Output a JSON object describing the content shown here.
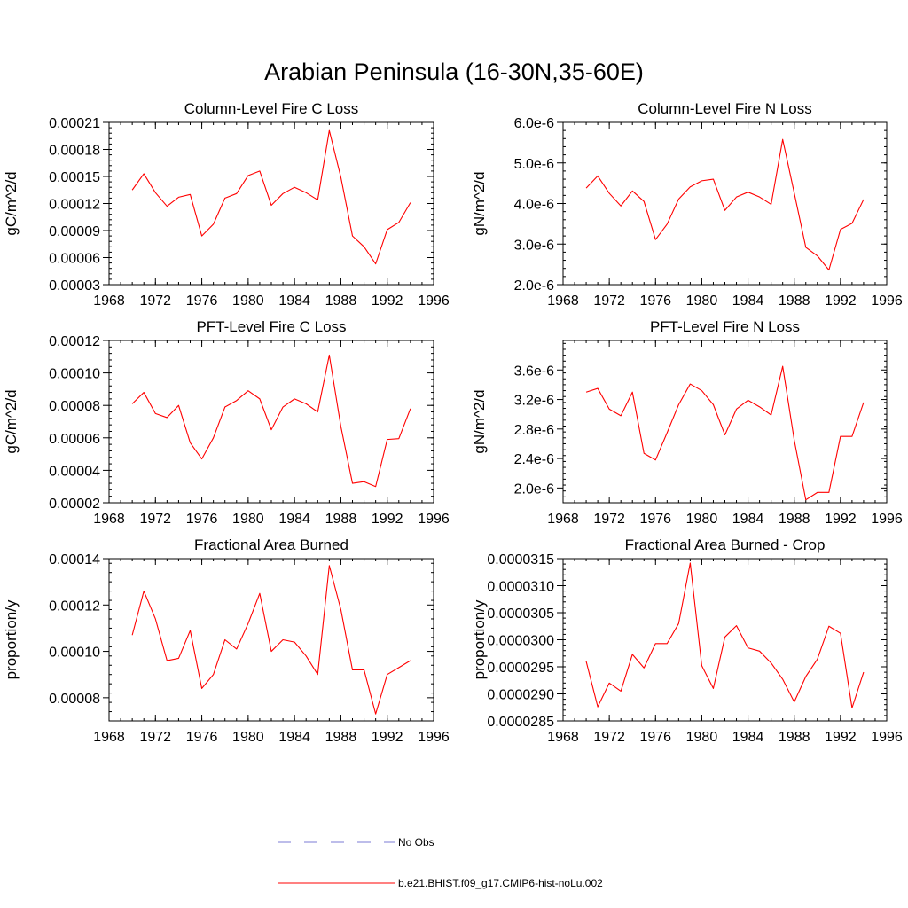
{
  "figure": {
    "title": "Arabian Peninsula (16-30N,35-60E)"
  },
  "chart_data": [
    {
      "type": "line",
      "title": "Column-Level Fire C Loss",
      "xlabel": "",
      "ylabel": "gC/m^2/d",
      "xlim": [
        1968,
        1996
      ],
      "ylim": [
        3e-05,
        0.00021
      ],
      "xticks": [
        1968,
        1972,
        1976,
        1980,
        1984,
        1988,
        1992,
        1996
      ],
      "yticks": [
        3e-05,
        6e-05,
        9e-05,
        0.00012,
        0.00015,
        0.00018,
        0.00021
      ],
      "ytick_labels": [
        "0.00003",
        "0.00006",
        "0.00009",
        "0.00012",
        "0.00015",
        "0.00018",
        "0.00021"
      ],
      "x": [
        1970,
        1971,
        1972,
        1973,
        1974,
        1975,
        1976,
        1977,
        1978,
        1979,
        1980,
        1981,
        1982,
        1983,
        1984,
        1985,
        1986,
        1987,
        1988,
        1989,
        1990,
        1991,
        1992,
        1993,
        1994
      ],
      "series": [
        {
          "color": "#ff0000",
          "values": [
            0.000135,
            0.000153,
            0.000132,
            0.000117,
            0.000127,
            0.00013,
            8.4e-05,
            9.7e-05,
            0.000126,
            0.000131,
            0.000151,
            0.000156,
            0.000118,
            0.000131,
            0.000138,
            0.000132,
            0.000124,
            0.000201,
            0.000149,
            8.4e-05,
            7.2e-05,
            5.3e-05,
            9.1e-05,
            9.9e-05,
            0.000121
          ]
        }
      ]
    },
    {
      "type": "line",
      "title": "Column-Level Fire N Loss",
      "xlabel": "",
      "ylabel": "gN/m^2/d",
      "xlim": [
        1968,
        1996
      ],
      "ylim": [
        2e-06,
        6e-06
      ],
      "xticks": [
        1968,
        1972,
        1976,
        1980,
        1984,
        1988,
        1992,
        1996
      ],
      "yticks": [
        2e-06,
        3e-06,
        4e-06,
        5e-06,
        6e-06
      ],
      "ytick_labels": [
        "2.0e-6",
        "3.0e-6",
        "4.0e-6",
        "5.0e-6",
        "6.0e-6"
      ],
      "x": [
        1970,
        1971,
        1972,
        1973,
        1974,
        1975,
        1976,
        1977,
        1978,
        1979,
        1980,
        1981,
        1982,
        1983,
        1984,
        1985,
        1986,
        1987,
        1988,
        1989,
        1990,
        1991,
        1992,
        1993,
        1994
      ],
      "series": [
        {
          "color": "#ff0000",
          "values": [
            4.38e-06,
            4.68e-06,
            4.25e-06,
            3.94e-06,
            4.31e-06,
            4.05e-06,
            3.11e-06,
            3.49e-06,
            4.11e-06,
            4.41e-06,
            4.56e-06,
            4.6e-06,
            3.83e-06,
            4.16e-06,
            4.28e-06,
            4.16e-06,
            3.98e-06,
            5.58e-06,
            4.26e-06,
            2.92e-06,
            2.71e-06,
            2.36e-06,
            3.36e-06,
            3.51e-06,
            4.1e-06
          ]
        }
      ]
    },
    {
      "type": "line",
      "title": "PFT-Level Fire C Loss",
      "xlabel": "",
      "ylabel": "gC/m^2/d",
      "xlim": [
        1968,
        1996
      ],
      "ylim": [
        2e-05,
        0.00012
      ],
      "xticks": [
        1968,
        1972,
        1976,
        1980,
        1984,
        1988,
        1992,
        1996
      ],
      "yticks": [
        2e-05,
        4e-05,
        6e-05,
        8e-05,
        0.0001,
        0.00012
      ],
      "ytick_labels": [
        "0.00002",
        "0.00004",
        "0.00006",
        "0.00008",
        "0.00010",
        "0.00012"
      ],
      "x": [
        1970,
        1971,
        1972,
        1973,
        1974,
        1975,
        1976,
        1977,
        1978,
        1979,
        1980,
        1981,
        1982,
        1983,
        1984,
        1985,
        1986,
        1987,
        1988,
        1989,
        1990,
        1991,
        1992,
        1993,
        1994
      ],
      "series": [
        {
          "color": "#ff0000",
          "values": [
            8.1e-05,
            8.8e-05,
            7.5e-05,
            7.25e-05,
            8e-05,
            5.7e-05,
            4.7e-05,
            6e-05,
            7.9e-05,
            8.3e-05,
            8.9e-05,
            8.4e-05,
            6.5e-05,
            7.9e-05,
            8.4e-05,
            8.1e-05,
            7.6e-05,
            0.000111,
            6.7e-05,
            3.2e-05,
            3.3e-05,
            3e-05,
            5.9e-05,
            5.95e-05,
            7.8e-05
          ]
        }
      ]
    },
    {
      "type": "line",
      "title": "PFT-Level Fire N Loss",
      "xlabel": "",
      "ylabel": "gN/m^2/d",
      "xlim": [
        1968,
        1996
      ],
      "ylim": [
        1.8e-06,
        4e-06
      ],
      "xticks": [
        1968,
        1972,
        1976,
        1980,
        1984,
        1988,
        1992,
        1996
      ],
      "yticks": [
        2e-06,
        2.4e-06,
        2.8e-06,
        3.2e-06,
        3.6e-06
      ],
      "ytick_labels": [
        "2.0e-6",
        "2.4e-6",
        "2.8e-6",
        "3.2e-6",
        "3.6e-6"
      ],
      "x": [
        1970,
        1971,
        1972,
        1973,
        1974,
        1975,
        1976,
        1977,
        1978,
        1979,
        1980,
        1981,
        1982,
        1983,
        1984,
        1985,
        1986,
        1987,
        1988,
        1989,
        1990,
        1991,
        1992,
        1993,
        1994
      ],
      "series": [
        {
          "color": "#ff0000",
          "values": [
            3.3e-06,
            3.35e-06,
            3.07e-06,
            2.98e-06,
            3.3e-06,
            2.47e-06,
            2.38e-06,
            2.75e-06,
            3.13e-06,
            3.41e-06,
            3.32e-06,
            3.13e-06,
            2.72e-06,
            3.07e-06,
            3.19e-06,
            3.1e-06,
            2.99e-06,
            3.65e-06,
            2.65e-06,
            1.84e-06,
            1.94e-06,
            1.94e-06,
            2.7e-06,
            2.7e-06,
            3.16e-06
          ]
        }
      ]
    },
    {
      "type": "line",
      "title": "Fractional Area Burned",
      "xlabel": "",
      "ylabel": "proportion/y",
      "xlim": [
        1968,
        1996
      ],
      "ylim": [
        7e-05,
        0.00014
      ],
      "xticks": [
        1968,
        1972,
        1976,
        1980,
        1984,
        1988,
        1992,
        1996
      ],
      "yticks": [
        8e-05,
        0.0001,
        0.00012,
        0.00014
      ],
      "ytick_labels": [
        "0.00008",
        "0.00010",
        "0.00012",
        "0.00014"
      ],
      "x": [
        1970,
        1971,
        1972,
        1973,
        1974,
        1975,
        1976,
        1977,
        1978,
        1979,
        1980,
        1981,
        1982,
        1983,
        1984,
        1985,
        1986,
        1987,
        1988,
        1989,
        1990,
        1991,
        1992,
        1993,
        1994
      ],
      "series": [
        {
          "color": "#ff0000",
          "values": [
            0.000107,
            0.000126,
            0.000114,
            9.6e-05,
            9.7e-05,
            0.000109,
            8.4e-05,
            9e-05,
            0.000105,
            0.000101,
            0.000112,
            0.000125,
            0.0001,
            0.000105,
            0.000104,
            9.8e-05,
            9e-05,
            0.000137,
            0.000118,
            9.2e-05,
            9.2e-05,
            7.3e-05,
            9e-05,
            9.3e-05,
            9.6e-05
          ]
        }
      ]
    },
    {
      "type": "line",
      "title": "Fractional Area Burned - Crop",
      "xlabel": "",
      "ylabel": "proportion/y",
      "xlim": [
        1968,
        1996
      ],
      "ylim": [
        2.85e-05,
        3.15e-05
      ],
      "xticks": [
        1968,
        1972,
        1976,
        1980,
        1984,
        1988,
        1992,
        1996
      ],
      "yticks": [
        2.85e-05,
        2.9e-05,
        2.95e-05,
        3e-05,
        3.05e-05,
        3.1e-05,
        3.15e-05
      ],
      "ytick_labels": [
        "0.0000285",
        "0.0000290",
        "0.0000295",
        "0.0000300",
        "0.0000305",
        "0.0000310",
        "0.0000315"
      ],
      "x": [
        1970,
        1971,
        1972,
        1973,
        1974,
        1975,
        1976,
        1977,
        1978,
        1979,
        1980,
        1981,
        1982,
        1983,
        1984,
        1985,
        1986,
        1987,
        1988,
        1989,
        1990,
        1991,
        1992,
        1993,
        1994
      ],
      "series": [
        {
          "color": "#ff0000",
          "values": [
            2.96e-05,
            2.876e-05,
            2.92e-05,
            2.905e-05,
            2.973e-05,
            2.948e-05,
            2.993e-05,
            2.993e-05,
            3.03e-05,
            3.142e-05,
            2.952e-05,
            2.91e-05,
            3.005e-05,
            3.026e-05,
            2.985e-05,
            2.979e-05,
            2.957e-05,
            2.927e-05,
            2.885e-05,
            2.932e-05,
            2.964e-05,
            3.025e-05,
            3.012e-05,
            2.874e-05,
            2.94e-05
          ]
        }
      ]
    }
  ],
  "legend": {
    "items": [
      {
        "label": "No Obs",
        "color": "#7b7bd6",
        "style": "dashed"
      },
      {
        "label": "b.e21.BHIST.f09_g17.CMIP6-hist-noLu.002",
        "color": "#ff0000",
        "style": "solid"
      }
    ]
  }
}
